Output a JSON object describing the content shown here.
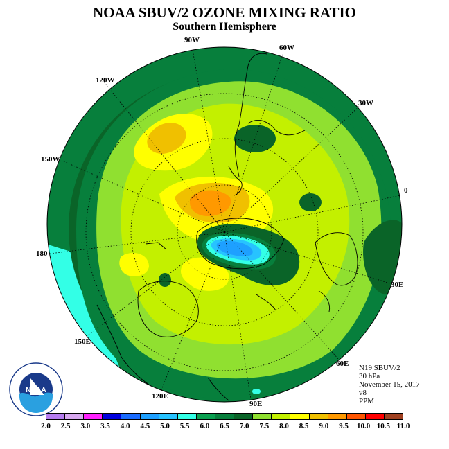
{
  "header": {
    "title": "NOAA SBUV/2 OZONE MIXING RATIO",
    "subtitle": "Southern Hemisphere"
  },
  "map": {
    "projection": "polar stereographic",
    "lon_labels": [
      "90W",
      "60W",
      "30W",
      "0",
      "30E",
      "60E",
      "90E",
      "120E",
      "150E",
      "180",
      "150W",
      "120W"
    ],
    "grid": true
  },
  "info": {
    "satellite": "N19 SBUV/2",
    "level": "30 hPa",
    "date": "November 15, 2017",
    "version": "v8",
    "units": "PPM"
  },
  "legend": {
    "ticks": [
      "2.0",
      "2.5",
      "3.0",
      "3.5",
      "4.0",
      "4.5",
      "5.0",
      "5.5",
      "6.0",
      "6.5",
      "7.0",
      "7.5",
      "8.0",
      "8.5",
      "9.0",
      "9.5",
      "10.0",
      "10.5",
      "11.0"
    ],
    "colors": [
      "#b57cf0",
      "#d8a8f0",
      "#ff22ff",
      "#0000dd",
      "#1a6cff",
      "#1ea0ff",
      "#27c3ff",
      "#33ffe6",
      "#0aa050",
      "#077f3c",
      "#0a6428",
      "#90e030",
      "#c3f000",
      "#ffff00",
      "#f0c000",
      "#ff9900",
      "#ff5500",
      "#ff0000",
      "#a04020"
    ]
  },
  "logo": {
    "name": "NOAA",
    "ring_text": "NATIONAL OCEANIC AND ATMOSPHERIC ADMINISTRATION · U.S. DEPARTMENT OF COMMERCE"
  }
}
